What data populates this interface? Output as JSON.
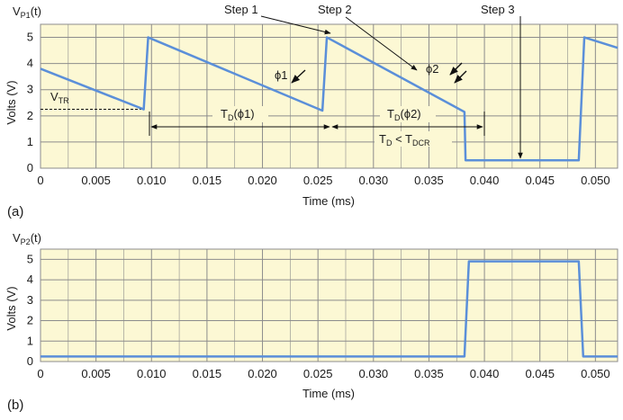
{
  "colors": {
    "plot_background": "#fcf8d4",
    "grid": "#8c8c8c",
    "trace": "#5b8fd9",
    "annotation": "#111111"
  },
  "chart_data": [
    {
      "type": "line",
      "panel_label": "(a)",
      "title_main": "V",
      "title_sub": "P1",
      "title_tail": "(t)",
      "xlabel": "Time (ms)",
      "ylabel": "Volts (V)",
      "xlim": [
        0,
        0.052
      ],
      "ylim": [
        0,
        5.5
      ],
      "x_ticks": [
        0,
        0.005,
        0.01,
        0.015,
        0.02,
        0.025,
        0.03,
        0.035,
        0.04,
        0.045,
        0.05
      ],
      "x_tick_labels": [
        "0",
        "0.005",
        "0.010",
        "0.015",
        "0.020",
        "0.025",
        "0.030",
        "0.035",
        "0.040",
        "0.045",
        "0.050"
      ],
      "y_ticks": [
        0,
        1,
        2,
        3,
        4,
        5
      ],
      "y_tick_labels": [
        "0",
        "1",
        "2",
        "3",
        "4",
        "5"
      ],
      "grid": true,
      "series": [
        {
          "x": [
            0,
            0.0093,
            0.0097,
            0.0254,
            0.0258,
            0.0382,
            0.0383,
            0.0485,
            0.049,
            0.052
          ],
          "y": [
            3.8,
            2.25,
            5.0,
            2.2,
            5.0,
            2.15,
            0.3,
            0.3,
            5.0,
            4.6
          ]
        }
      ],
      "annotations": {
        "step1": "Step 1",
        "step2": "Step 2",
        "step3": "Step 3",
        "phi1": "ϕ1",
        "phi2": "ϕ2",
        "vtr_main": "V",
        "vtr_sub": "TR",
        "vtr_level": 2.25,
        "td1_main": "T",
        "td1_sub": "D",
        "td1_tail": "(ϕ1)",
        "td2_main": "T",
        "td2_sub": "D",
        "td2_tail": "(ϕ2)",
        "tdcr_main1": "T",
        "tdcr_sub1": "D",
        "tdcr_mid": " < T",
        "tdcr_sub2": "DCR"
      }
    },
    {
      "type": "line",
      "panel_label": "(b)",
      "title_main": "V",
      "title_sub": "P2",
      "title_tail": "(t)",
      "xlabel": "Time (ms)",
      "ylabel": "Volts (V)",
      "xlim": [
        0,
        0.052
      ],
      "ylim": [
        0,
        5.5
      ],
      "x_ticks": [
        0,
        0.005,
        0.01,
        0.015,
        0.02,
        0.025,
        0.03,
        0.035,
        0.04,
        0.045,
        0.05
      ],
      "x_tick_labels": [
        "0",
        "0.005",
        "0.010",
        "0.015",
        "0.020",
        "0.025",
        "0.030",
        "0.035",
        "0.040",
        "0.045",
        "0.050"
      ],
      "y_ticks": [
        0,
        1,
        2,
        3,
        4,
        5
      ],
      "y_tick_labels": [
        "0",
        "1",
        "2",
        "3",
        "4",
        "5"
      ],
      "grid": true,
      "series": [
        {
          "x": [
            0,
            0.0382,
            0.0386,
            0.0485,
            0.0489,
            0.052
          ],
          "y": [
            0.25,
            0.25,
            4.9,
            4.9,
            0.25,
            0.25
          ]
        }
      ]
    }
  ]
}
